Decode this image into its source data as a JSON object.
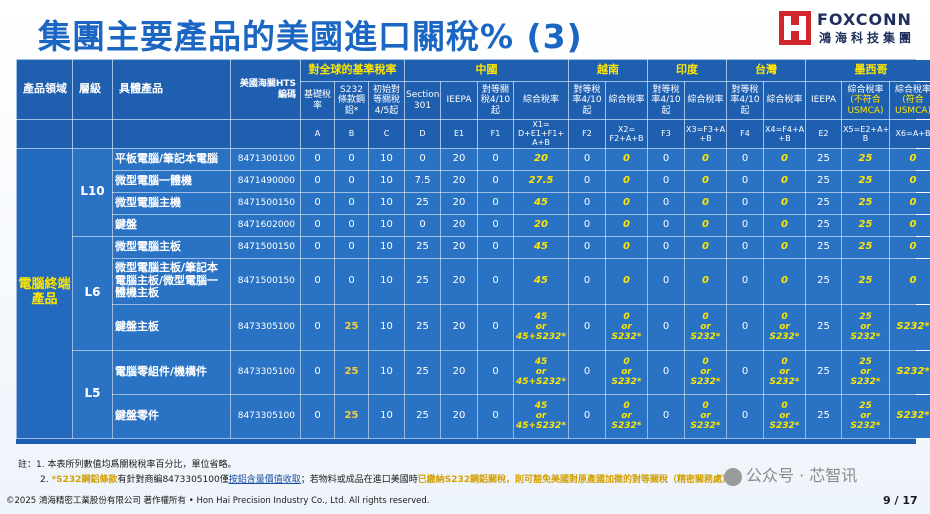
{
  "title": "集團主要產品的美國進口關稅% (3)",
  "logo": {
    "name": "FOXCONN",
    "chinese": "鴻海科技集團",
    "mark_color": "#d0262e"
  },
  "colors": {
    "accent_yellow": "#ffe600",
    "table_blue": "#2a72c4",
    "title_blue": "#1a66c2"
  },
  "header": {
    "groups": [
      "對全球的基準稅率",
      "中國",
      "越南",
      "印度",
      "台灣",
      "墨西哥"
    ],
    "col_category": "產品領域",
    "col_level": "層級",
    "col_product": "具體產品",
    "col_hts": "美國海關HTS編碼",
    "sub": [
      {
        "label": "基礎稅率",
        "letter": "A"
      },
      {
        "label": "S232條款鋼鋁*",
        "letter": "B"
      },
      {
        "label": "初始對等關稅4/5起",
        "letter": "C"
      },
      {
        "label": "Section 301",
        "letter": "D"
      },
      {
        "label": "IEEPA",
        "letter": "E1"
      },
      {
        "label": "對等關稅4/10起",
        "letter": "F1"
      },
      {
        "label": "綜合稅率",
        "letter": "X1= D+E1+F1+ A+B"
      },
      {
        "label": "對等稅率4/10起",
        "letter": "F2"
      },
      {
        "label": "綜合稅率",
        "letter": "X2= F2+A+B"
      },
      {
        "label": "對等稅率4/10起",
        "letter": "F3"
      },
      {
        "label": "綜合稅率",
        "letter": "X3=F3+A +B"
      },
      {
        "label": "對等稅率4/10起",
        "letter": "F4"
      },
      {
        "label": "綜合稅率",
        "letter": "X4=F4+A +B"
      },
      {
        "label": "IEEPA",
        "letter": "E2"
      },
      {
        "label": "綜合稅率",
        "label_note": "(不符合USMCA)",
        "letter": "X5=E2+A+ B"
      },
      {
        "label": "綜合稅率",
        "label_note": "(符合USMCA)",
        "letter": "X6=A+B"
      }
    ]
  },
  "category": "電腦終端產品",
  "levels": [
    "L10",
    "L6",
    "L5"
  ],
  "rows": [
    {
      "product": "平板電腦/筆記本電腦",
      "code": "8471300100",
      "v": [
        "0",
        "0",
        "10",
        "0",
        "20",
        "0",
        "20",
        "0",
        "0",
        "0",
        "0",
        "0",
        "0",
        "25",
        "25",
        "0"
      ]
    },
    {
      "product": "微型電腦一體機",
      "code": "8471490000",
      "v": [
        "0",
        "0",
        "10",
        "7.5",
        "20",
        "0",
        "27.5",
        "0",
        "0",
        "0",
        "0",
        "0",
        "0",
        "25",
        "25",
        "0"
      ]
    },
    {
      "product": "微型電腦主機",
      "code": "8471500150",
      "v": [
        "0",
        "0",
        "10",
        "25",
        "20",
        "0",
        "45",
        "0",
        "0",
        "0",
        "0",
        "0",
        "0",
        "25",
        "25",
        "0"
      ]
    },
    {
      "product": "鍵盤",
      "code": "8471602000",
      "v": [
        "0",
        "0",
        "10",
        "0",
        "20",
        "0",
        "20",
        "0",
        "0",
        "0",
        "0",
        "0",
        "0",
        "25",
        "25",
        "0"
      ]
    },
    {
      "product": "微型電腦主板",
      "code": "8471500150",
      "v": [
        "0",
        "0",
        "10",
        "25",
        "20",
        "0",
        "45",
        "0",
        "0",
        "0",
        "0",
        "0",
        "0",
        "25",
        "25",
        "0"
      ]
    },
    {
      "product": "微型電腦主板/筆記本電腦主板/微型電腦一體機主板",
      "code": "8471500150",
      "v": [
        "0",
        "0",
        "10",
        "25",
        "20",
        "0",
        "45",
        "0",
        "0",
        "0",
        "0",
        "0",
        "0",
        "25",
        "25",
        "0"
      ]
    },
    {
      "product": "鍵盤主板",
      "code": "8473305100",
      "v": [
        "0",
        "25",
        "10",
        "25",
        "20",
        "0",
        "45 or 45+S232*",
        "0",
        "0 or S232*",
        "0",
        "0 or S232*",
        "0",
        "0 or S232*",
        "25",
        "25 or S232*",
        "S232*"
      ]
    },
    {
      "product": "電腦零組件/機構件",
      "code": "8473305100",
      "v": [
        "0",
        "25",
        "10",
        "25",
        "20",
        "0",
        "45 or 45+S232*",
        "0",
        "0 or S232*",
        "0",
        "0 or S232*",
        "0",
        "0 or S232*",
        "25",
        "25 or S232*",
        "S232*"
      ]
    },
    {
      "product": "鍵盤零件",
      "code": "8473305100",
      "v": [
        "0",
        "25",
        "10",
        "25",
        "20",
        "0",
        "45 or 45+S232*",
        "0",
        "0 or S232*",
        "0",
        "0 or S232*",
        "0",
        "0 or S232*",
        "25",
        "25 or S232*",
        "S232*"
      ]
    }
  ],
  "notes": {
    "prefix": "註：",
    "n1": "1. 本表所列數值均爲關稅稅率百分比，單位省略。",
    "n2_a": "2. ",
    "n2_b": "*S232鋼鋁條款",
    "n2_c": "有針對商編8473305100僅",
    "n2_d": "按鋁含量價值收取",
    "n2_e": "；若物料或成品在進口美國時",
    "n2_f": "已繳納S232鋼鋁關稅，則可豁免美國對原產國加徵的對等關稅（精密關務處）",
    "n2_g": "。"
  },
  "copyright": "©2025 鴻海精密工業股份有限公司 著作權所有 • Hon Hai Precision Industry Co., Ltd. All rights reserved.",
  "page": "9 / 17",
  "watermark": "公众号 · 芯智讯"
}
